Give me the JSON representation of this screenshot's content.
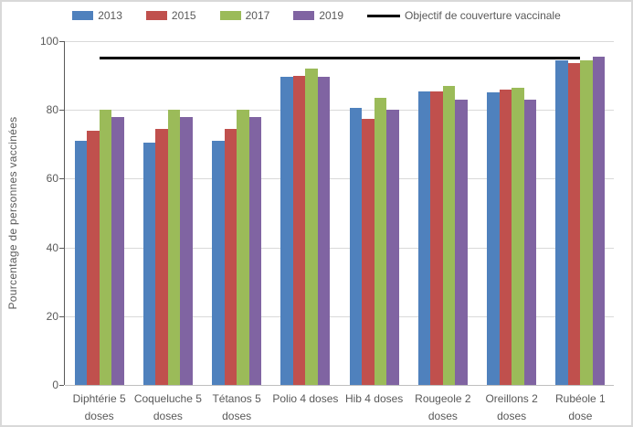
{
  "colors": {
    "text": "#595959",
    "gridline": "#d9d9d9",
    "axis": "#595959"
  },
  "legend": {
    "objective_label": "Objectif de couverture vaccinale"
  },
  "chart_data": {
    "type": "bar",
    "title": "",
    "xlabel": "",
    "ylabel": "Pourcentage de personnes vaccinées",
    "ylim": [
      0,
      100
    ],
    "yticks": [
      0,
      20,
      40,
      60,
      80,
      100
    ],
    "grid": true,
    "legend_position": "top-center",
    "categories": [
      "Diphtérie 5 doses",
      "Coqueluche 5 doses",
      "Tétanos 5 doses",
      "Polio 4 doses",
      "Hib 4 doses",
      "Rougeole 2 doses",
      "Oreillons 2 doses",
      "Rubéole 1 dose"
    ],
    "series": [
      {
        "name": "2013",
        "color": "#4F81BD",
        "values": [
          71,
          70.5,
          71,
          89.5,
          80.5,
          85.5,
          85,
          94.5
        ]
      },
      {
        "name": "2015",
        "color": "#C0504D",
        "values": [
          74,
          74.5,
          74.5,
          90,
          77.5,
          85.5,
          86,
          93.5
        ]
      },
      {
        "name": "2017",
        "color": "#9BBB59",
        "values": [
          80,
          80,
          80,
          92,
          83.5,
          87,
          86.5,
          94.5
        ]
      },
      {
        "name": "2019",
        "color": "#8064A2",
        "values": [
          78,
          78,
          78,
          89.5,
          80,
          83,
          83,
          95.5
        ]
      }
    ],
    "objective_line": {
      "label": "Objectif de couverture vaccinale",
      "value": 95,
      "color": "#000000"
    }
  }
}
